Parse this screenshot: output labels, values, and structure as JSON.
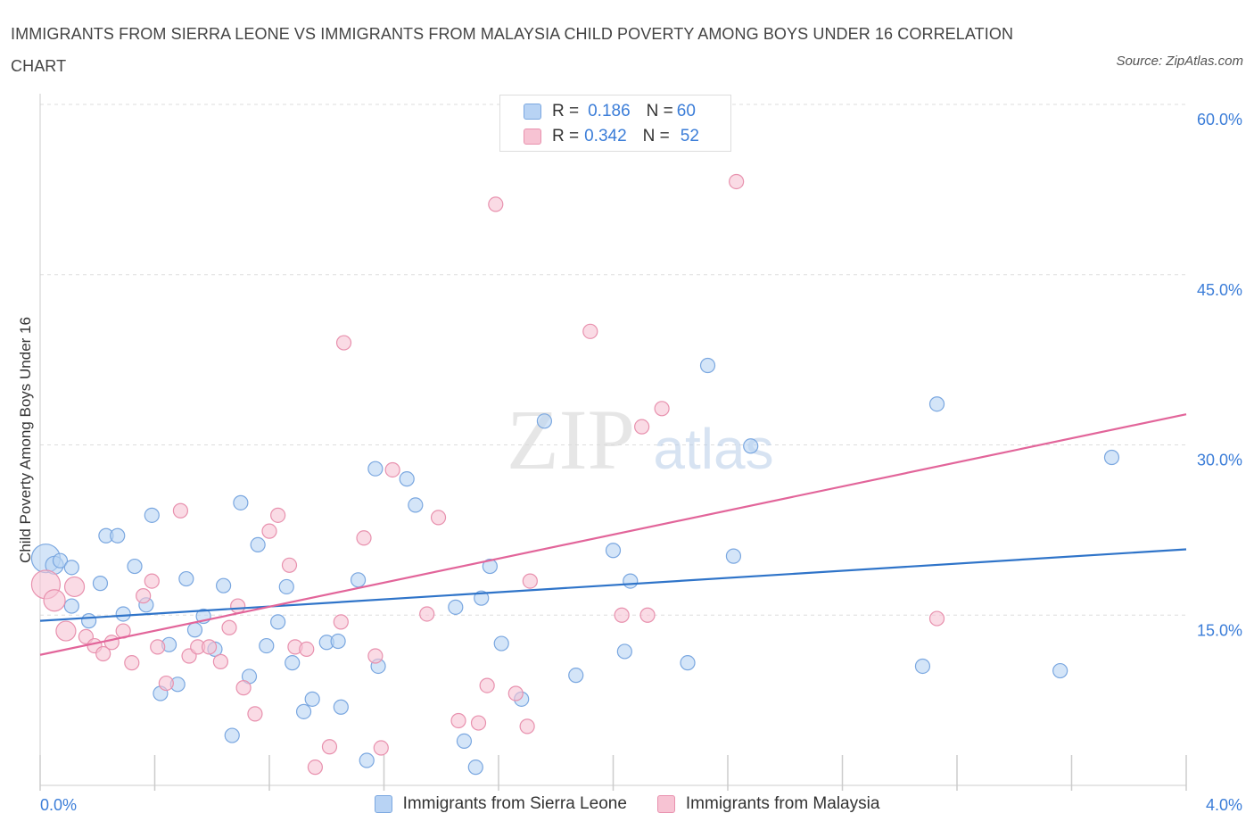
{
  "title": "IMMIGRANTS FROM SIERRA LEONE VS IMMIGRANTS FROM MALAYSIA CHILD POVERTY AMONG BOYS UNDER 16 CORRELATION CHART",
  "source": "Source: ZipAtlas.com",
  "watermark": {
    "zip": "ZIP",
    "atlas": "atlas"
  },
  "colors": {
    "blue_fill": "#b8d3f4",
    "blue_stroke": "#7aa7e0",
    "blue_line": "#2f74c9",
    "pink_fill": "#f7c3d3",
    "pink_stroke": "#e891ae",
    "pink_line": "#e2659a",
    "axis_label": "#3b7dd8",
    "grid": "#dddddd"
  },
  "legend": {
    "rows": [
      {
        "r_label": "R = ",
        "r_value": "0.186",
        "n_label": "N = ",
        "n_value": "60"
      },
      {
        "r_label": "R = ",
        "r_value": "0.342",
        "n_label": "N = ",
        "n_value": "52"
      }
    ]
  },
  "bottom_legend": [
    "Immigrants from Sierra Leone",
    "Immigrants from Malaysia"
  ],
  "chart_data": {
    "type": "scatter",
    "title": "IMMIGRANTS FROM SIERRA LEONE VS IMMIGRANTS FROM MALAYSIA CHILD POVERTY AMONG BOYS UNDER 16 CORRELATION CHART",
    "xlabel": "",
    "ylabel": "Child Poverty Among Boys Under 16",
    "xlim": [
      0,
      4
    ],
    "ylim": [
      0,
      60
    ],
    "x_tick_labels": [
      "0.0%",
      "4.0%"
    ],
    "y_ticks": [
      15,
      30,
      45,
      60
    ],
    "y_tick_labels": [
      "15.0%",
      "30.0%",
      "45.0%",
      "60.0%"
    ],
    "series": [
      {
        "name": "Immigrants from Sierra Leone",
        "R": 0.186,
        "N": 60,
        "trend": {
          "x": [
            0,
            4
          ],
          "y": [
            14.5,
            20.8
          ]
        },
        "points": [
          [
            0.02,
            20.0,
            16
          ],
          [
            0.05,
            19.4,
            10
          ],
          [
            0.07,
            19.8,
            8
          ],
          [
            0.11,
            19.2,
            8
          ],
          [
            0.11,
            15.8,
            8
          ],
          [
            0.17,
            14.5,
            8
          ],
          [
            0.21,
            17.8,
            8
          ],
          [
            0.23,
            22.0,
            8
          ],
          [
            0.27,
            22.0,
            8
          ],
          [
            0.29,
            15.1,
            8
          ],
          [
            0.33,
            19.3,
            8
          ],
          [
            0.37,
            15.9,
            8
          ],
          [
            0.39,
            23.8,
            8
          ],
          [
            0.42,
            8.1,
            8
          ],
          [
            0.45,
            12.4,
            8
          ],
          [
            0.48,
            8.9,
            8
          ],
          [
            0.51,
            18.2,
            8
          ],
          [
            0.54,
            13.7,
            8
          ],
          [
            0.57,
            14.9,
            8
          ],
          [
            0.61,
            12.0,
            8
          ],
          [
            0.64,
            17.6,
            8
          ],
          [
            0.67,
            4.4,
            8
          ],
          [
            0.7,
            24.9,
            8
          ],
          [
            0.73,
            9.6,
            8
          ],
          [
            0.76,
            21.2,
            8
          ],
          [
            0.79,
            12.3,
            8
          ],
          [
            0.83,
            14.4,
            8
          ],
          [
            0.86,
            17.5,
            8
          ],
          [
            0.88,
            10.8,
            8
          ],
          [
            0.92,
            6.5,
            8
          ],
          [
            0.95,
            7.6,
            8
          ],
          [
            1.0,
            12.6,
            8
          ],
          [
            1.04,
            12.7,
            8
          ],
          [
            1.05,
            6.9,
            8
          ],
          [
            1.11,
            18.1,
            8
          ],
          [
            1.14,
            2.2,
            8
          ],
          [
            1.17,
            27.9,
            8
          ],
          [
            1.18,
            10.5,
            8
          ],
          [
            1.28,
            27.0,
            8
          ],
          [
            1.31,
            24.7,
            8
          ],
          [
            1.45,
            15.7,
            8
          ],
          [
            1.48,
            3.9,
            8
          ],
          [
            1.52,
            1.6,
            8
          ],
          [
            1.54,
            16.5,
            8
          ],
          [
            1.57,
            19.3,
            8
          ],
          [
            1.61,
            12.5,
            8
          ],
          [
            1.68,
            7.6,
            8
          ],
          [
            1.76,
            32.1,
            8
          ],
          [
            1.87,
            9.7,
            8
          ],
          [
            2.0,
            20.7,
            8
          ],
          [
            2.04,
            11.8,
            8
          ],
          [
            2.06,
            18.0,
            8
          ],
          [
            2.26,
            10.8,
            8
          ],
          [
            2.33,
            37.0,
            8
          ],
          [
            2.42,
            20.2,
            8
          ],
          [
            2.48,
            29.9,
            8
          ],
          [
            3.08,
            10.5,
            8
          ],
          [
            3.13,
            33.6,
            8
          ],
          [
            3.56,
            10.1,
            8
          ],
          [
            3.74,
            28.9,
            8
          ]
        ]
      },
      {
        "name": "Immigrants from Malaysia",
        "R": 0.342,
        "N": 52,
        "trend": {
          "x": [
            0,
            4
          ],
          "y": [
            11.5,
            32.7
          ]
        },
        "points": [
          [
            0.02,
            17.7,
            16
          ],
          [
            0.05,
            16.3,
            12
          ],
          [
            0.09,
            13.6,
            11
          ],
          [
            0.12,
            17.5,
            11
          ],
          [
            0.16,
            13.1,
            8
          ],
          [
            0.19,
            12.3,
            8
          ],
          [
            0.22,
            11.6,
            8
          ],
          [
            0.25,
            12.6,
            8
          ],
          [
            0.29,
            13.6,
            8
          ],
          [
            0.32,
            10.8,
            8
          ],
          [
            0.36,
            16.7,
            8
          ],
          [
            0.39,
            18.0,
            8
          ],
          [
            0.41,
            12.2,
            8
          ],
          [
            0.44,
            9.0,
            8
          ],
          [
            0.49,
            24.2,
            8
          ],
          [
            0.52,
            11.4,
            8
          ],
          [
            0.55,
            12.2,
            8
          ],
          [
            0.59,
            12.2,
            8
          ],
          [
            0.63,
            10.9,
            8
          ],
          [
            0.66,
            13.9,
            8
          ],
          [
            0.69,
            15.8,
            8
          ],
          [
            0.71,
            8.6,
            8
          ],
          [
            0.75,
            6.3,
            8
          ],
          [
            0.8,
            22.4,
            8
          ],
          [
            0.83,
            23.8,
            8
          ],
          [
            0.87,
            19.4,
            8
          ],
          [
            0.89,
            12.2,
            8
          ],
          [
            0.93,
            12.0,
            8
          ],
          [
            0.96,
            1.6,
            8
          ],
          [
            1.01,
            3.4,
            8
          ],
          [
            1.05,
            14.4,
            8
          ],
          [
            1.06,
            39.0,
            8
          ],
          [
            1.13,
            21.8,
            8
          ],
          [
            1.17,
            11.4,
            8
          ],
          [
            1.19,
            3.3,
            8
          ],
          [
            1.23,
            27.8,
            8
          ],
          [
            1.35,
            15.1,
            8
          ],
          [
            1.39,
            23.6,
            8
          ],
          [
            1.46,
            5.7,
            8
          ],
          [
            1.53,
            5.5,
            8
          ],
          [
            1.56,
            8.8,
            8
          ],
          [
            1.59,
            51.2,
            8
          ],
          [
            1.66,
            8.1,
            8
          ],
          [
            1.7,
            5.2,
            8
          ],
          [
            1.71,
            18.0,
            8
          ],
          [
            1.92,
            40.0,
            8
          ],
          [
            2.03,
            15.0,
            8
          ],
          [
            2.1,
            31.6,
            8
          ],
          [
            2.12,
            15.0,
            8
          ],
          [
            2.17,
            33.2,
            8
          ],
          [
            2.43,
            53.2,
            8
          ],
          [
            3.13,
            14.7,
            8
          ]
        ]
      }
    ]
  }
}
